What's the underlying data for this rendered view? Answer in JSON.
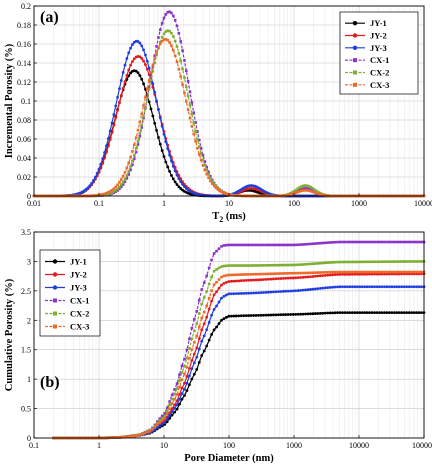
{
  "colors": {
    "JY-1": "#000000",
    "JY-2": "#e41a1c",
    "JY-3": "#1f3ee0",
    "CX-1": "#8a35c9",
    "CX-2": "#7fae33",
    "CX-3": "#ef6a2a"
  },
  "chart_data": [
    {
      "type": "line",
      "panel_label": "(a)",
      "xlabel": "T",
      "xlabel_sub": "2",
      "xlabel_unit": " (ms)",
      "ylabel": "Incremental Porosity (%)",
      "xscale": "log",
      "xlim": [
        0.01,
        10000
      ],
      "ylim": [
        0,
        0.2
      ],
      "xticks": [
        0.01,
        0.1,
        1,
        10,
        100,
        1000,
        10000
      ],
      "xtick_labels": [
        "0.01",
        "0.1",
        "1",
        "10",
        "100",
        "1000",
        "10000"
      ],
      "yticks": [
        0,
        0.02,
        0.04,
        0.06,
        0.08,
        0.1,
        0.12,
        0.14,
        0.16,
        0.18,
        0.2
      ],
      "ytick_labels": [
        "0",
        "0.02",
        "0.04",
        "0.06",
        "0.08",
        "0.1",
        "0.12",
        "0.14",
        "0.16",
        "0.18",
        "0.2"
      ],
      "grid": true,
      "legend_position": "top-right",
      "series": [
        {
          "name": "JY-1",
          "marker": "circle",
          "line": "solid",
          "peaks": [
            {
              "center": 0.35,
              "height": 0.132,
              "width": 0.3
            },
            {
              "center": 20,
              "height": 0.006,
              "width": 0.15
            }
          ]
        },
        {
          "name": "JY-2",
          "marker": "circle",
          "line": "solid",
          "peaks": [
            {
              "center": 0.4,
              "height": 0.147,
              "width": 0.32
            },
            {
              "center": 22,
              "height": 0.008,
              "width": 0.16
            }
          ]
        },
        {
          "name": "JY-3",
          "marker": "circle",
          "line": "solid",
          "peaks": [
            {
              "center": 0.38,
              "height": 0.163,
              "width": 0.31
            },
            {
              "center": 22,
              "height": 0.011,
              "width": 0.16
            }
          ]
        },
        {
          "name": "CX-1",
          "marker": "square",
          "line": "dashed",
          "peaks": [
            {
              "center": 1.2,
              "height": 0.194,
              "width": 0.3
            },
            {
              "center": 150,
              "height": 0.008,
              "width": 0.14
            }
          ]
        },
        {
          "name": "CX-2",
          "marker": "square",
          "line": "dashed",
          "peaks": [
            {
              "center": 1.15,
              "height": 0.174,
              "width": 0.31
            },
            {
              "center": 150,
              "height": 0.011,
              "width": 0.14
            }
          ]
        },
        {
          "name": "CX-3",
          "marker": "square",
          "line": "dashed",
          "peaks": [
            {
              "center": 1.05,
              "height": 0.165,
              "width": 0.32
            },
            {
              "center": 150,
              "height": 0.006,
              "width": 0.14
            }
          ]
        }
      ]
    },
    {
      "type": "line",
      "panel_label": "(b)",
      "xlabel": "Pore Diameter (nm)",
      "ylabel": "Cumulative Porosity (%)",
      "xscale": "log",
      "xlim": [
        0.1,
        100000
      ],
      "ylim": [
        0,
        3.5
      ],
      "xticks": [
        0.1,
        1,
        10,
        100,
        1000,
        10000,
        100000
      ],
      "xtick_labels": [
        "0.1",
        "1",
        "10",
        "100",
        "1000",
        "10000",
        "100000"
      ],
      "yticks": [
        0,
        0.5,
        1,
        1.5,
        2,
        2.5,
        3,
        3.5
      ],
      "ytick_labels": [
        "0",
        "0.5",
        "1",
        "1.5",
        "2",
        "2.5",
        "3",
        "3.5"
      ],
      "grid": true,
      "legend_position": "top-left",
      "series": [
        {
          "name": "JY-1",
          "marker": "circle",
          "line": "solid",
          "x": [
            0.2,
            1,
            2,
            4,
            6,
            10,
            15,
            20,
            30,
            40,
            60,
            80,
            100,
            200,
            1000,
            5000,
            100000
          ],
          "y": [
            0,
            0,
            0.01,
            0.04,
            0.08,
            0.22,
            0.45,
            0.7,
            1.1,
            1.45,
            1.85,
            2.02,
            2.07,
            2.08,
            2.1,
            2.13,
            2.13
          ]
        },
        {
          "name": "JY-2",
          "marker": "circle",
          "line": "solid",
          "x": [
            0.2,
            1,
            2,
            4,
            6,
            10,
            15,
            20,
            30,
            40,
            60,
            80,
            100,
            200,
            1000,
            5000,
            100000
          ],
          "y": [
            0,
            0,
            0.01,
            0.04,
            0.1,
            0.28,
            0.58,
            0.9,
            1.45,
            1.9,
            2.45,
            2.62,
            2.66,
            2.68,
            2.72,
            2.78,
            2.79
          ]
        },
        {
          "name": "JY-3",
          "marker": "circle",
          "line": "solid",
          "x": [
            0.2,
            1,
            2,
            4,
            6,
            10,
            15,
            20,
            30,
            40,
            60,
            80,
            100,
            200,
            1000,
            5000,
            100000
          ],
          "y": [
            0,
            0,
            0.01,
            0.04,
            0.09,
            0.25,
            0.52,
            0.8,
            1.3,
            1.7,
            2.2,
            2.4,
            2.45,
            2.46,
            2.5,
            2.57,
            2.57
          ]
        },
        {
          "name": "CX-1",
          "marker": "square",
          "line": "dashed",
          "x": [
            0.2,
            1,
            2,
            4,
            6,
            10,
            15,
            20,
            30,
            40,
            60,
            80,
            100,
            200,
            1000,
            5000,
            100000
          ],
          "y": [
            0,
            0,
            0.01,
            0.05,
            0.13,
            0.4,
            0.85,
            1.3,
            2.05,
            2.6,
            3.15,
            3.27,
            3.28,
            3.28,
            3.28,
            3.33,
            3.33
          ]
        },
        {
          "name": "CX-2",
          "marker": "square",
          "line": "dashed",
          "x": [
            0.2,
            1,
            2,
            4,
            6,
            10,
            15,
            20,
            30,
            40,
            60,
            80,
            100,
            200,
            1000,
            5000,
            100000
          ],
          "y": [
            0,
            0,
            0.01,
            0.05,
            0.12,
            0.36,
            0.77,
            1.18,
            1.85,
            2.35,
            2.85,
            2.92,
            2.93,
            2.93,
            2.94,
            2.99,
            3.0
          ]
        },
        {
          "name": "CX-3",
          "marker": "square",
          "line": "dashed",
          "x": [
            0.2,
            1,
            2,
            4,
            6,
            10,
            15,
            20,
            30,
            40,
            60,
            80,
            100,
            200,
            1000,
            5000,
            100000
          ],
          "y": [
            0,
            0,
            0.01,
            0.04,
            0.11,
            0.32,
            0.68,
            1.05,
            1.65,
            2.1,
            2.62,
            2.75,
            2.77,
            2.78,
            2.8,
            2.82,
            2.82
          ]
        }
      ]
    }
  ]
}
